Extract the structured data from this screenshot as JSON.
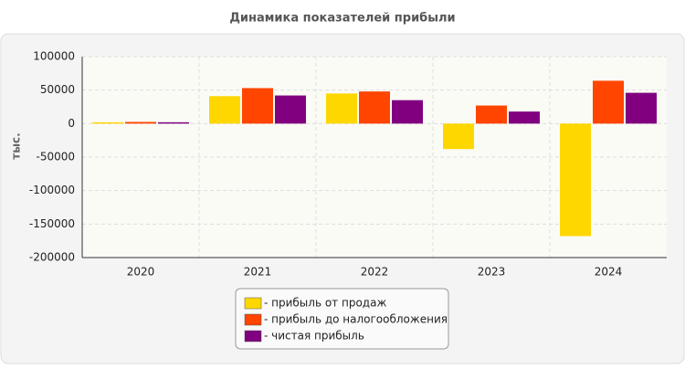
{
  "chart_data": {
    "type": "bar",
    "title": "Динамика показателей прибыли",
    "y_label": "тыс.",
    "categories": [
      "2020",
      "2021",
      "2022",
      "2023",
      "2024"
    ],
    "series": [
      {
        "name": "- прибыль от продаж",
        "color": "#ffd700",
        "values": [
          2000,
          41000,
          45000,
          -38000,
          -168000
        ]
      },
      {
        "name": "- прибыль до налогообложения",
        "color": "#ff4500",
        "values": [
          2500,
          53000,
          48000,
          27000,
          64000
        ]
      },
      {
        "name": "- чистая прибыль",
        "color": "#800080",
        "values": [
          2000,
          42000,
          35000,
          18000,
          46000
        ]
      }
    ],
    "ylim": [
      -200000,
      100000
    ],
    "yticks": [
      100000,
      50000,
      0,
      -50000,
      -100000,
      -150000,
      -200000
    ],
    "grid": true
  }
}
